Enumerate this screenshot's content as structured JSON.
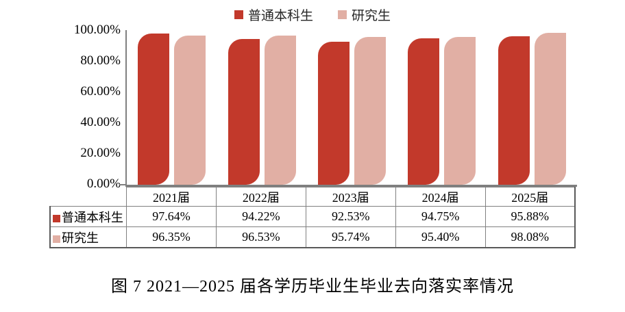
{
  "figure": {
    "caption": "图 7  2021—2025 届各学历毕业生毕业去向落实率情况"
  },
  "chart_data": {
    "type": "bar",
    "title": "",
    "xlabel": "",
    "ylabel": "",
    "categories": [
      "2021届",
      "2022届",
      "2023届",
      "2024届",
      "2025届"
    ],
    "series": [
      {
        "name": "普通本科生",
        "color": "#c2392b",
        "values": [
          97.64,
          94.22,
          92.53,
          94.75,
          95.88
        ]
      },
      {
        "name": "研究生",
        "color": "#e1afa4",
        "values": [
          96.35,
          96.53,
          95.74,
          95.4,
          98.08
        ]
      }
    ],
    "ylim": [
      0,
      100
    ],
    "yticks": [
      "100.00%",
      "80.00%",
      "60.00%",
      "40.00%",
      "20.00%",
      "0.00%"
    ],
    "legend_position": "top",
    "grid": false,
    "axis_color": "#7f7f7f"
  },
  "table": {
    "year_headers": [
      "2021届",
      "2022届",
      "2023届",
      "2024届",
      "2025届"
    ],
    "rows": [
      {
        "label": "普通本科生",
        "color": "#c2392b",
        "values": [
          "97.64%",
          "94.22%",
          "92.53%",
          "94.75%",
          "95.88%"
        ]
      },
      {
        "label": "研究生",
        "color": "#e1afa4",
        "values": [
          "96.35%",
          "96.53%",
          "95.74%",
          "95.40%",
          "98.08%"
        ]
      }
    ]
  }
}
